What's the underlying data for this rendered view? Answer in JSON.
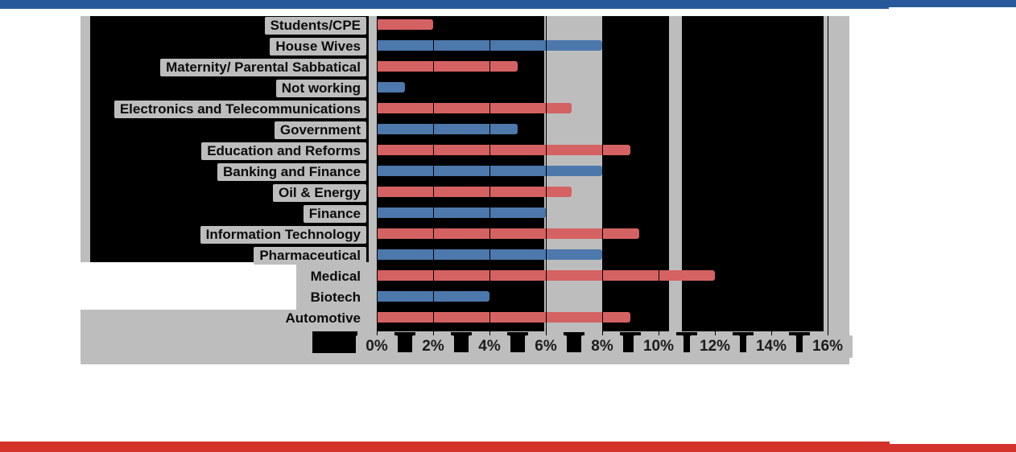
{
  "page": {
    "top_accent_color": "#28599B",
    "bottom_accent_color": "#D4332B"
  },
  "chart_data": {
    "type": "bar",
    "orientation": "horizontal",
    "title": "",
    "xlabel": "",
    "ylabel": "",
    "unit": "%",
    "xlim": [
      0,
      16
    ],
    "x_ticks": [
      "0%",
      "2%",
      "4%",
      "6%",
      "8%",
      "10%",
      "12%",
      "14%",
      "16%"
    ],
    "grid": true,
    "legend": "none",
    "categories": [
      "Students/CPE",
      "House Wives",
      "Maternity/ Parental Sabbatical",
      "Not working",
      "Electronics and Telecommunications",
      "Government",
      "Education and Reforms",
      "Banking and Finance",
      "Oil & Energy",
      "Finance",
      "Information Technology",
      "Pharmaceutical",
      "Medical",
      "Biotech",
      "Automotive"
    ],
    "values": [
      2,
      8,
      5,
      1,
      6.9,
      5,
      9,
      8,
      6.9,
      6,
      9.3,
      8,
      12,
      4,
      9
    ],
    "bar_color_keys": [
      "red",
      "blue",
      "red",
      "blue",
      "red",
      "blue",
      "red",
      "blue",
      "red",
      "blue",
      "red",
      "blue",
      "red",
      "blue",
      "red"
    ],
    "colors": {
      "red": "#D56262",
      "blue": "#4D78AC",
      "chart_background": "#BDBDBD",
      "plot_background": "#000000",
      "gridline": "#000000",
      "text": "#0b0b0b"
    }
  }
}
